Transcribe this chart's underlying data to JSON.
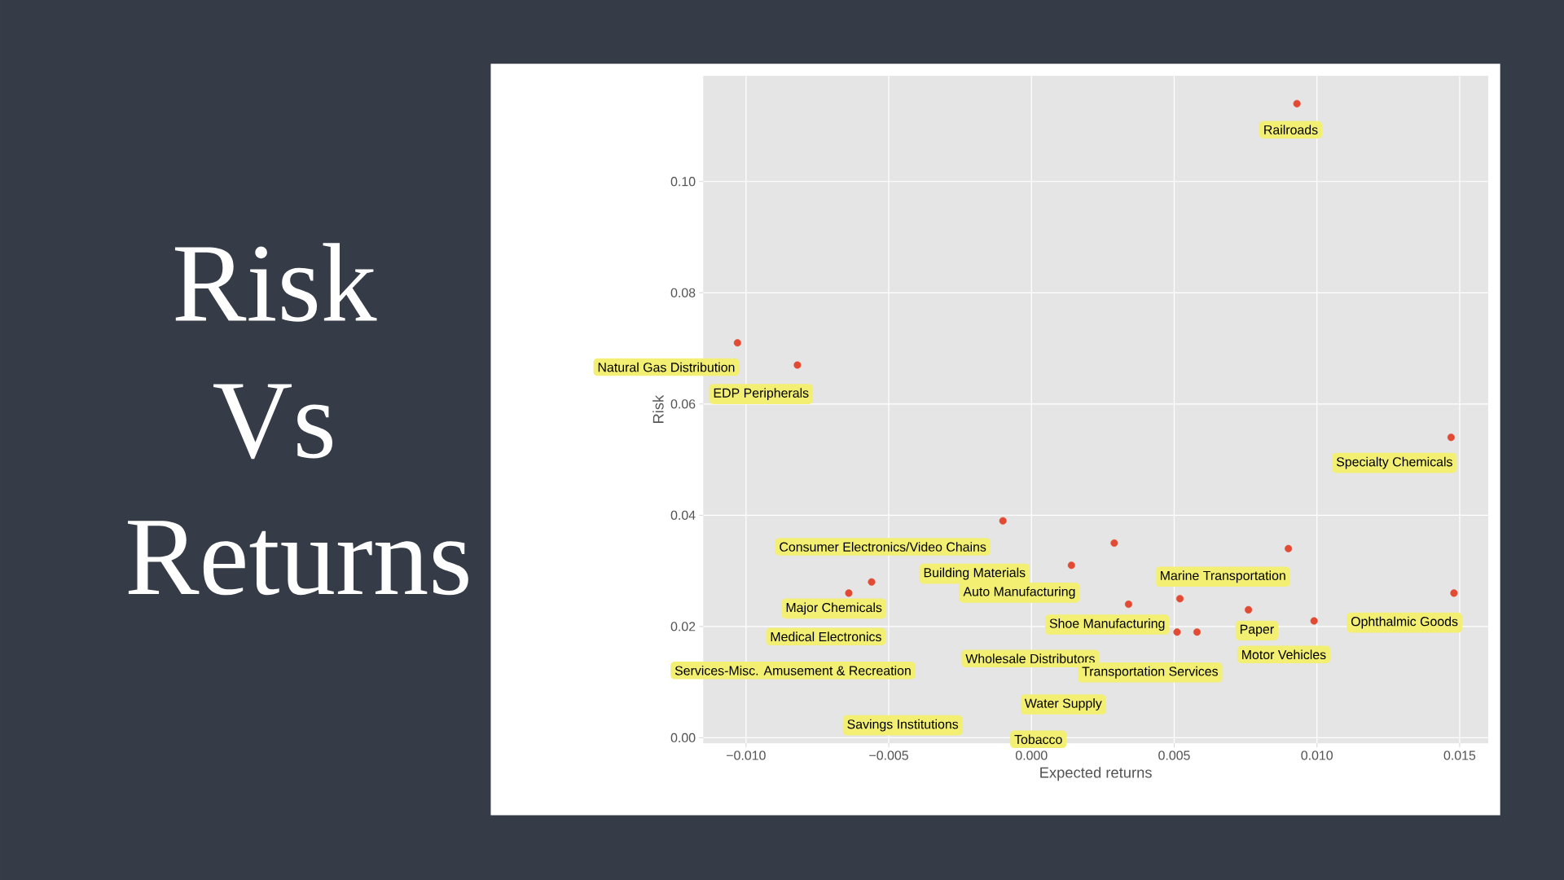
{
  "chart_data": {
    "type": "scatter",
    "title": "Risk Vs Returns",
    "xlabel": "Expected returns",
    "ylabel": "Risk",
    "x": [
      -0.0103,
      -0.0082,
      -0.0064,
      -0.0056,
      -0.001,
      0.0014,
      0.0029,
      0.0034,
      0.0051,
      0.0052,
      0.0058,
      0.0076,
      0.009,
      0.0093,
      0.0099,
      0.0147,
      0.0148
    ],
    "values": [
      0.071,
      0.067,
      0.026,
      0.028,
      0.039,
      0.031,
      0.035,
      0.024,
      0.019,
      0.025,
      0.019,
      0.023,
      0.034,
      0.114,
      0.021,
      0.054,
      0.026
    ],
    "color": "#e24a33",
    "grid": true,
    "xlim": [
      -0.0115,
      0.016
    ],
    "ylim": [
      -0.001,
      0.119
    ],
    "xticks": [
      {
        "value": -0.01,
        "label": "−0.010"
      },
      {
        "value": -0.005,
        "label": "−0.005"
      },
      {
        "value": 0,
        "label": "0.000"
      },
      {
        "value": 0.005,
        "label": "0.005"
      },
      {
        "value": 0.01,
        "label": "0.010"
      },
      {
        "value": 0.015,
        "label": "0.015"
      }
    ],
    "yticks": [
      {
        "value": 0,
        "label": "0.00"
      },
      {
        "value": 0.02,
        "label": "0.02"
      },
      {
        "value": 0.04,
        "label": "0.04"
      },
      {
        "value": 0.06,
        "label": "0.06"
      },
      {
        "value": 0.08,
        "label": "0.08"
      },
      {
        "value": 0.1,
        "label": "0.10"
      }
    ],
    "annotations": [
      "Railroads",
      "Natural Gas Distribution",
      "EDP Peripherals",
      "Specialty Chemicals",
      "Consumer Electronics/Video Chains",
      "Building Materials",
      "Marine Transportation",
      "Auto Manufacturing",
      "Major Chemicals",
      "Shoe Manufacturing",
      "Ophthalmic Goods",
      "Paper",
      "Medical Electronics",
      "Motor Vehicles",
      "Wholesale Distributors",
      "Services-Misc. Amusement & Recreation",
      "Transportation Services",
      "Water Supply",
      "Savings Institutions",
      "Tobacco"
    ]
  }
}
